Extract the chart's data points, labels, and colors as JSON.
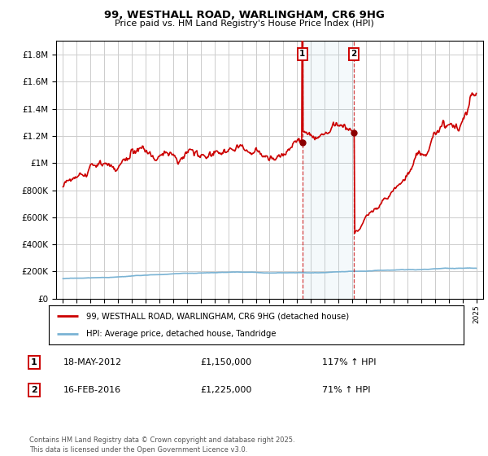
{
  "title_line1": "99, WESTHALL ROAD, WARLINGHAM, CR6 9HG",
  "title_line2": "Price paid vs. HM Land Registry's House Price Index (HPI)",
  "hpi_color": "#7ab3d4",
  "price_color": "#cc0000",
  "background_color": "#ffffff",
  "grid_color": "#cccccc",
  "marker1_date_x": 2012.38,
  "marker1_price": 1150000,
  "marker1_date_str": "18-MAY-2012",
  "marker1_price_str": "£1,150,000",
  "marker1_hpi_str": "117% ↑ HPI",
  "marker2_date_x": 2016.12,
  "marker2_price": 1225000,
  "marker2_date_str": "16-FEB-2016",
  "marker2_price_str": "£1,225,000",
  "marker2_hpi_str": "71% ↑ HPI",
  "legend_line1": "99, WESTHALL ROAD, WARLINGHAM, CR6 9HG (detached house)",
  "legend_line2": "HPI: Average price, detached house, Tandridge",
  "footer": "Contains HM Land Registry data © Crown copyright and database right 2025.\nThis data is licensed under the Open Government Licence v3.0.",
  "ylim_max": 1900000,
  "ylim_min": 0,
  "xlim_min": 1994.5,
  "xlim_max": 2025.5
}
